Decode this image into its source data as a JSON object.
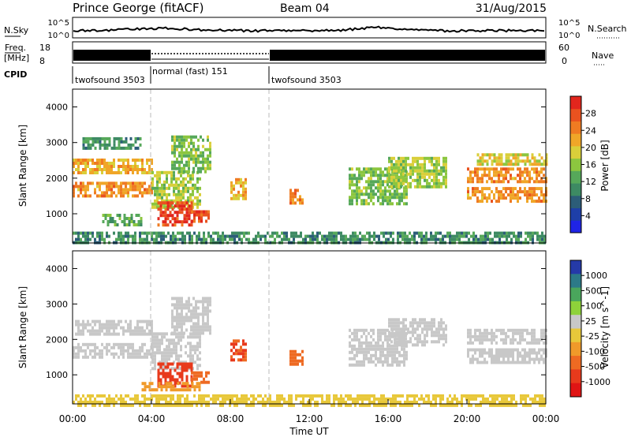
{
  "header": {
    "station": "Prince George (fitACF)",
    "beam": "Beam 04",
    "date": "31/Aug/2015"
  },
  "noise_panel": {
    "left_label": "N.Sky",
    "right_label": "N.Search",
    "left_ticks": [
      "10^5",
      "10^0"
    ],
    "right_ticks": [
      "10^5",
      "10^0"
    ]
  },
  "freq_panel": {
    "left_label_line1": "Freq.",
    "left_label_line2": "[MHz]",
    "right_label": "Nave",
    "left_ticks": [
      "18",
      "8"
    ],
    "right_ticks": [
      "60",
      "0"
    ]
  },
  "cpid": {
    "label": "CPID",
    "segments": [
      {
        "name": "twofsound 3503",
        "start_hour": 0,
        "end_hour": 4
      },
      {
        "name": "normal (fast) 151",
        "start_hour": 4,
        "end_hour": 10
      },
      {
        "name": "twofsound 3503",
        "start_hour": 10,
        "end_hour": 24
      }
    ]
  },
  "x_axis": {
    "label": "Time UT",
    "tick_labels": [
      "00:00",
      "04:00",
      "08:00",
      "12:00",
      "16:00",
      "20:00",
      "00:00"
    ]
  },
  "colors": {
    "frame": "#000000",
    "dash": "#bbbbbb"
  },
  "chart_data": [
    {
      "type": "heatmap",
      "panel": "power",
      "ylabel": "Slant Range [km]",
      "y_ticks": [
        "1000",
        "2000",
        "3000",
        "4000"
      ],
      "ylim": [
        180,
        4500
      ],
      "xlim_hours": [
        0,
        24
      ],
      "colorbar": {
        "label": "Power [dB]",
        "tick_labels": [
          "4",
          "8",
          "12",
          "16",
          "20",
          "24",
          "28"
        ],
        "range": [
          0,
          30
        ],
        "colors": [
          "#1f24e6",
          "#1e3fa8",
          "#2c5d78",
          "#3d8a63",
          "#56a85a",
          "#8cc63f",
          "#d9cf3a",
          "#f0a628",
          "#ef7b22",
          "#e9521f",
          "#e2261d"
        ]
      },
      "echo_regions": [
        {
          "x": [
            0,
            4
          ],
          "y": [
            2150,
            2550
          ],
          "value": 20
        },
        {
          "x": [
            0,
            4
          ],
          "y": [
            1500,
            1900
          ],
          "value": 22
        },
        {
          "x": [
            0.5,
            3.5
          ],
          "y": [
            2850,
            3150
          ],
          "value": 10
        },
        {
          "x": [
            1.5,
            3.5
          ],
          "y": [
            650,
            1000
          ],
          "value": 12
        },
        {
          "x": [
            4,
            6.5
          ],
          "y": [
            1200,
            2200
          ],
          "value": 16
        },
        {
          "x": [
            5,
            7
          ],
          "y": [
            2200,
            3200
          ],
          "value": 14
        },
        {
          "x": [
            4.3,
            6
          ],
          "y": [
            700,
            1350
          ],
          "value": 27
        },
        {
          "x": [
            6,
            6.9
          ],
          "y": [
            800,
            1100
          ],
          "value": 26
        },
        {
          "x": [
            8,
            8.8
          ],
          "y": [
            1400,
            2000
          ],
          "value": 20
        },
        {
          "x": [
            11,
            11.7
          ],
          "y": [
            1300,
            1700
          ],
          "value": 24
        },
        {
          "x": [
            14,
            17
          ],
          "y": [
            1300,
            2300
          ],
          "value": 14
        },
        {
          "x": [
            16,
            19
          ],
          "y": [
            1800,
            2600
          ],
          "value": 16
        },
        {
          "x": [
            20,
            24
          ],
          "y": [
            1350,
            1750
          ],
          "value": 22
        },
        {
          "x": [
            20,
            24
          ],
          "y": [
            1900,
            2300
          ],
          "value": 22
        },
        {
          "x": [
            20.5,
            24
          ],
          "y": [
            2400,
            2700
          ],
          "value": 18
        },
        {
          "x": [
            0,
            24
          ],
          "y": [
            180,
            500
          ],
          "value": 10
        }
      ]
    },
    {
      "type": "heatmap",
      "panel": "velocity",
      "ylabel": "Slant Range [km]",
      "y_ticks": [
        "1000",
        "2000",
        "3000",
        "4000"
      ],
      "ylim": [
        180,
        4500
      ],
      "xlim_hours": [
        0,
        24
      ],
      "colorbar": {
        "label": "Velocity [m s^-1]",
        "tick_labels": [
          "1000",
          "500",
          "100",
          "25",
          "-25",
          "-100",
          "-500",
          "-1000"
        ],
        "colors": [
          "#253aa8",
          "#2c7a88",
          "#4aa65c",
          "#8ed23a",
          "#c8c8c8",
          "#e8c83a",
          "#f09a2a",
          "#ee6a22",
          "#e83a1c",
          "#e01414"
        ]
      },
      "echo_regions": [
        {
          "x": [
            0,
            4
          ],
          "y": [
            2150,
            2550
          ],
          "value": 0
        },
        {
          "x": [
            0,
            4
          ],
          "y": [
            1500,
            1900
          ],
          "value": 0
        },
        {
          "x": [
            4,
            6.5
          ],
          "y": [
            1200,
            2200
          ],
          "value": 0
        },
        {
          "x": [
            5,
            7
          ],
          "y": [
            2200,
            3200
          ],
          "value": 0
        },
        {
          "x": [
            4.3,
            6
          ],
          "y": [
            700,
            1350
          ],
          "value": -500
        },
        {
          "x": [
            6,
            6.9
          ],
          "y": [
            800,
            1100
          ],
          "value": -300
        },
        {
          "x": [
            3.5,
            6.5
          ],
          "y": [
            550,
            800
          ],
          "value": -150
        },
        {
          "x": [
            8,
            8.8
          ],
          "y": [
            1400,
            2000
          ],
          "value": -400
        },
        {
          "x": [
            11,
            11.7
          ],
          "y": [
            1300,
            1700
          ],
          "value": -300
        },
        {
          "x": [
            14,
            17
          ],
          "y": [
            1300,
            2300
          ],
          "value": 0
        },
        {
          "x": [
            16,
            19
          ],
          "y": [
            1800,
            2600
          ],
          "value": 0
        },
        {
          "x": [
            20,
            24
          ],
          "y": [
            1350,
            1750
          ],
          "value": 0
        },
        {
          "x": [
            20,
            24
          ],
          "y": [
            1900,
            2300
          ],
          "value": 0
        },
        {
          "x": [
            0,
            24
          ],
          "y": [
            180,
            450
          ],
          "value": -50
        }
      ]
    }
  ]
}
